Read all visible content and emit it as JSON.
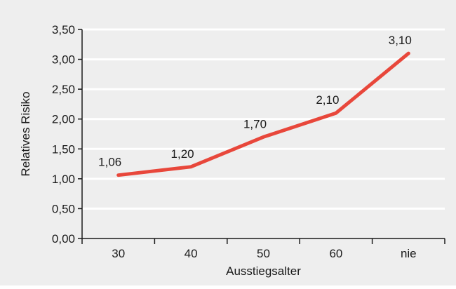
{
  "colors": {
    "background": "#eeeeee",
    "grid": "#ffffff",
    "axis": "#1a1a1a",
    "line": "#e8473b"
  },
  "chart_data": {
    "type": "line",
    "categories": [
      "30",
      "40",
      "50",
      "60",
      "nie"
    ],
    "series": [
      {
        "values": [
          1.06,
          1.2,
          1.7,
          2.1,
          3.1
        ]
      }
    ],
    "data_labels": [
      "1,06",
      "1,20",
      "1,70",
      "2,10",
      "3,10"
    ],
    "xlabel": "Ausstiegsalter",
    "ylabel": "Relatives Risiko",
    "ylim": [
      0,
      3.5
    ],
    "yticks": [
      0,
      0.5,
      1.0,
      1.5,
      2.0,
      2.5,
      3.0,
      3.5
    ],
    "ytick_labels": [
      "0,00",
      "0,50",
      "1,00",
      "1,50",
      "2,00",
      "2,50",
      "3,00",
      "3,50"
    ],
    "grid": true,
    "legend": "none"
  }
}
